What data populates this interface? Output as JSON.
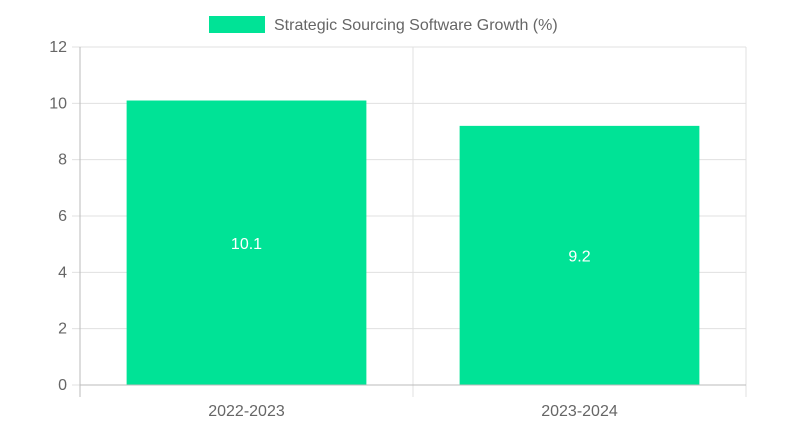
{
  "chart_data": {
    "type": "bar",
    "categories": [
      "2022-2023",
      "2023-2024"
    ],
    "series": [
      {
        "name": "Strategic Sourcing Software Growth (%)",
        "values": [
          10.1,
          9.2
        ],
        "color": "#00e396"
      }
    ],
    "ylim": [
      0,
      12
    ],
    "yticks": [
      0,
      2,
      4,
      6,
      8,
      10,
      12
    ],
    "data_labels": [
      "10.1",
      "9.2"
    ],
    "grid": true,
    "legend_position": "top",
    "gridline_color": "#e0e0e0",
    "axis_color": "#bbbbbb",
    "text_color": "#666666",
    "data_label_color": "#ffffff"
  }
}
